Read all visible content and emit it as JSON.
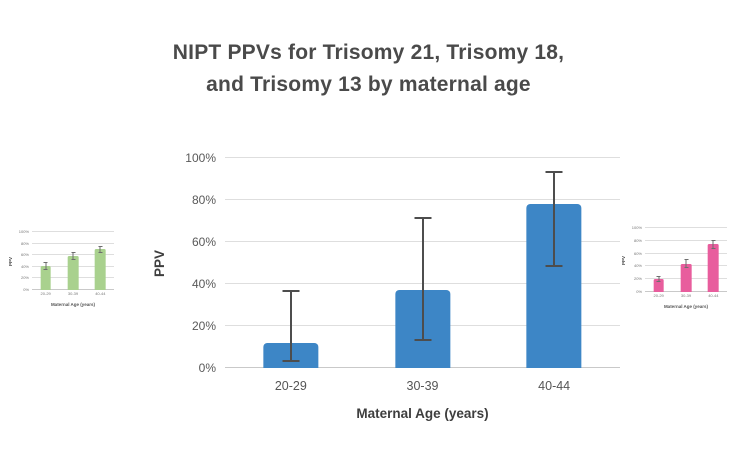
{
  "page": {
    "title_line1": "NIPT PPVs for Trisomy 21, Trisomy 18,",
    "title_line2": "and Trisomy 13 by maternal age"
  },
  "chart_data": [
    {
      "name": "main-bar-chart-blue",
      "type": "bar",
      "categories": [
        "20-29",
        "30-39",
        "40-44"
      ],
      "values": [
        12,
        37,
        78
      ],
      "error_low": [
        3,
        13,
        48
      ],
      "error_high": [
        37,
        72,
        94
      ],
      "xlabel": "Maternal Age (years)",
      "ylabel": "PPV",
      "ylim": [
        0,
        100
      ],
      "yticks": [
        "0%",
        "20%",
        "40%",
        "60%",
        "80%",
        "100%"
      ],
      "grid": true,
      "legend": false,
      "bar_color": "#3D86C6",
      "error_color": "#4D4D4D"
    },
    {
      "name": "left-thumbnail-bar-chart-green",
      "type": "bar",
      "categories": [
        "20-29",
        "30-39",
        "40-44"
      ],
      "values": [
        41,
        59,
        70
      ],
      "error_low": [
        34,
        51,
        63
      ],
      "error_high": [
        48,
        66,
        76
      ],
      "xlabel": "Maternal Age (years)",
      "ylabel": "PPV",
      "ylim": [
        0,
        100
      ],
      "yticks": [
        "0%",
        "20%",
        "40%",
        "60%",
        "80%",
        "100%"
      ],
      "grid": true,
      "legend": false,
      "bar_color": "#A9D18E",
      "error_color": "#6E6E6E"
    },
    {
      "name": "right-thumbnail-bar-chart-pink",
      "type": "bar",
      "categories": [
        "20-29",
        "30-39",
        "40-44"
      ],
      "values": [
        20,
        44,
        75
      ],
      "error_low": [
        15,
        37,
        67
      ],
      "error_high": [
        25,
        51,
        82
      ],
      "xlabel": "Maternal Age (years)",
      "ylabel": "PPV",
      "ylim": [
        0,
        100
      ],
      "yticks": [
        "0%",
        "20%",
        "40%",
        "60%",
        "80%",
        "100%"
      ],
      "grid": true,
      "legend": false,
      "bar_color": "#E85D9D",
      "error_color": "#6E6E6E"
    }
  ]
}
